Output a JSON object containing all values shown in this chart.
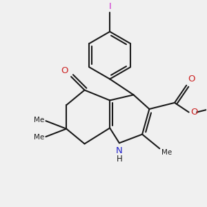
{
  "bg_color": "#f0f0f0",
  "bond_color": "#1a1a1a",
  "N_color": "#2222cc",
  "O_color": "#cc2222",
  "I_color": "#cc22cc",
  "lw": 1.5,
  "figsize": [
    3.0,
    3.0
  ],
  "dpi": 100,
  "xlim": [
    20,
    280
  ],
  "ylim": [
    20,
    280
  ]
}
